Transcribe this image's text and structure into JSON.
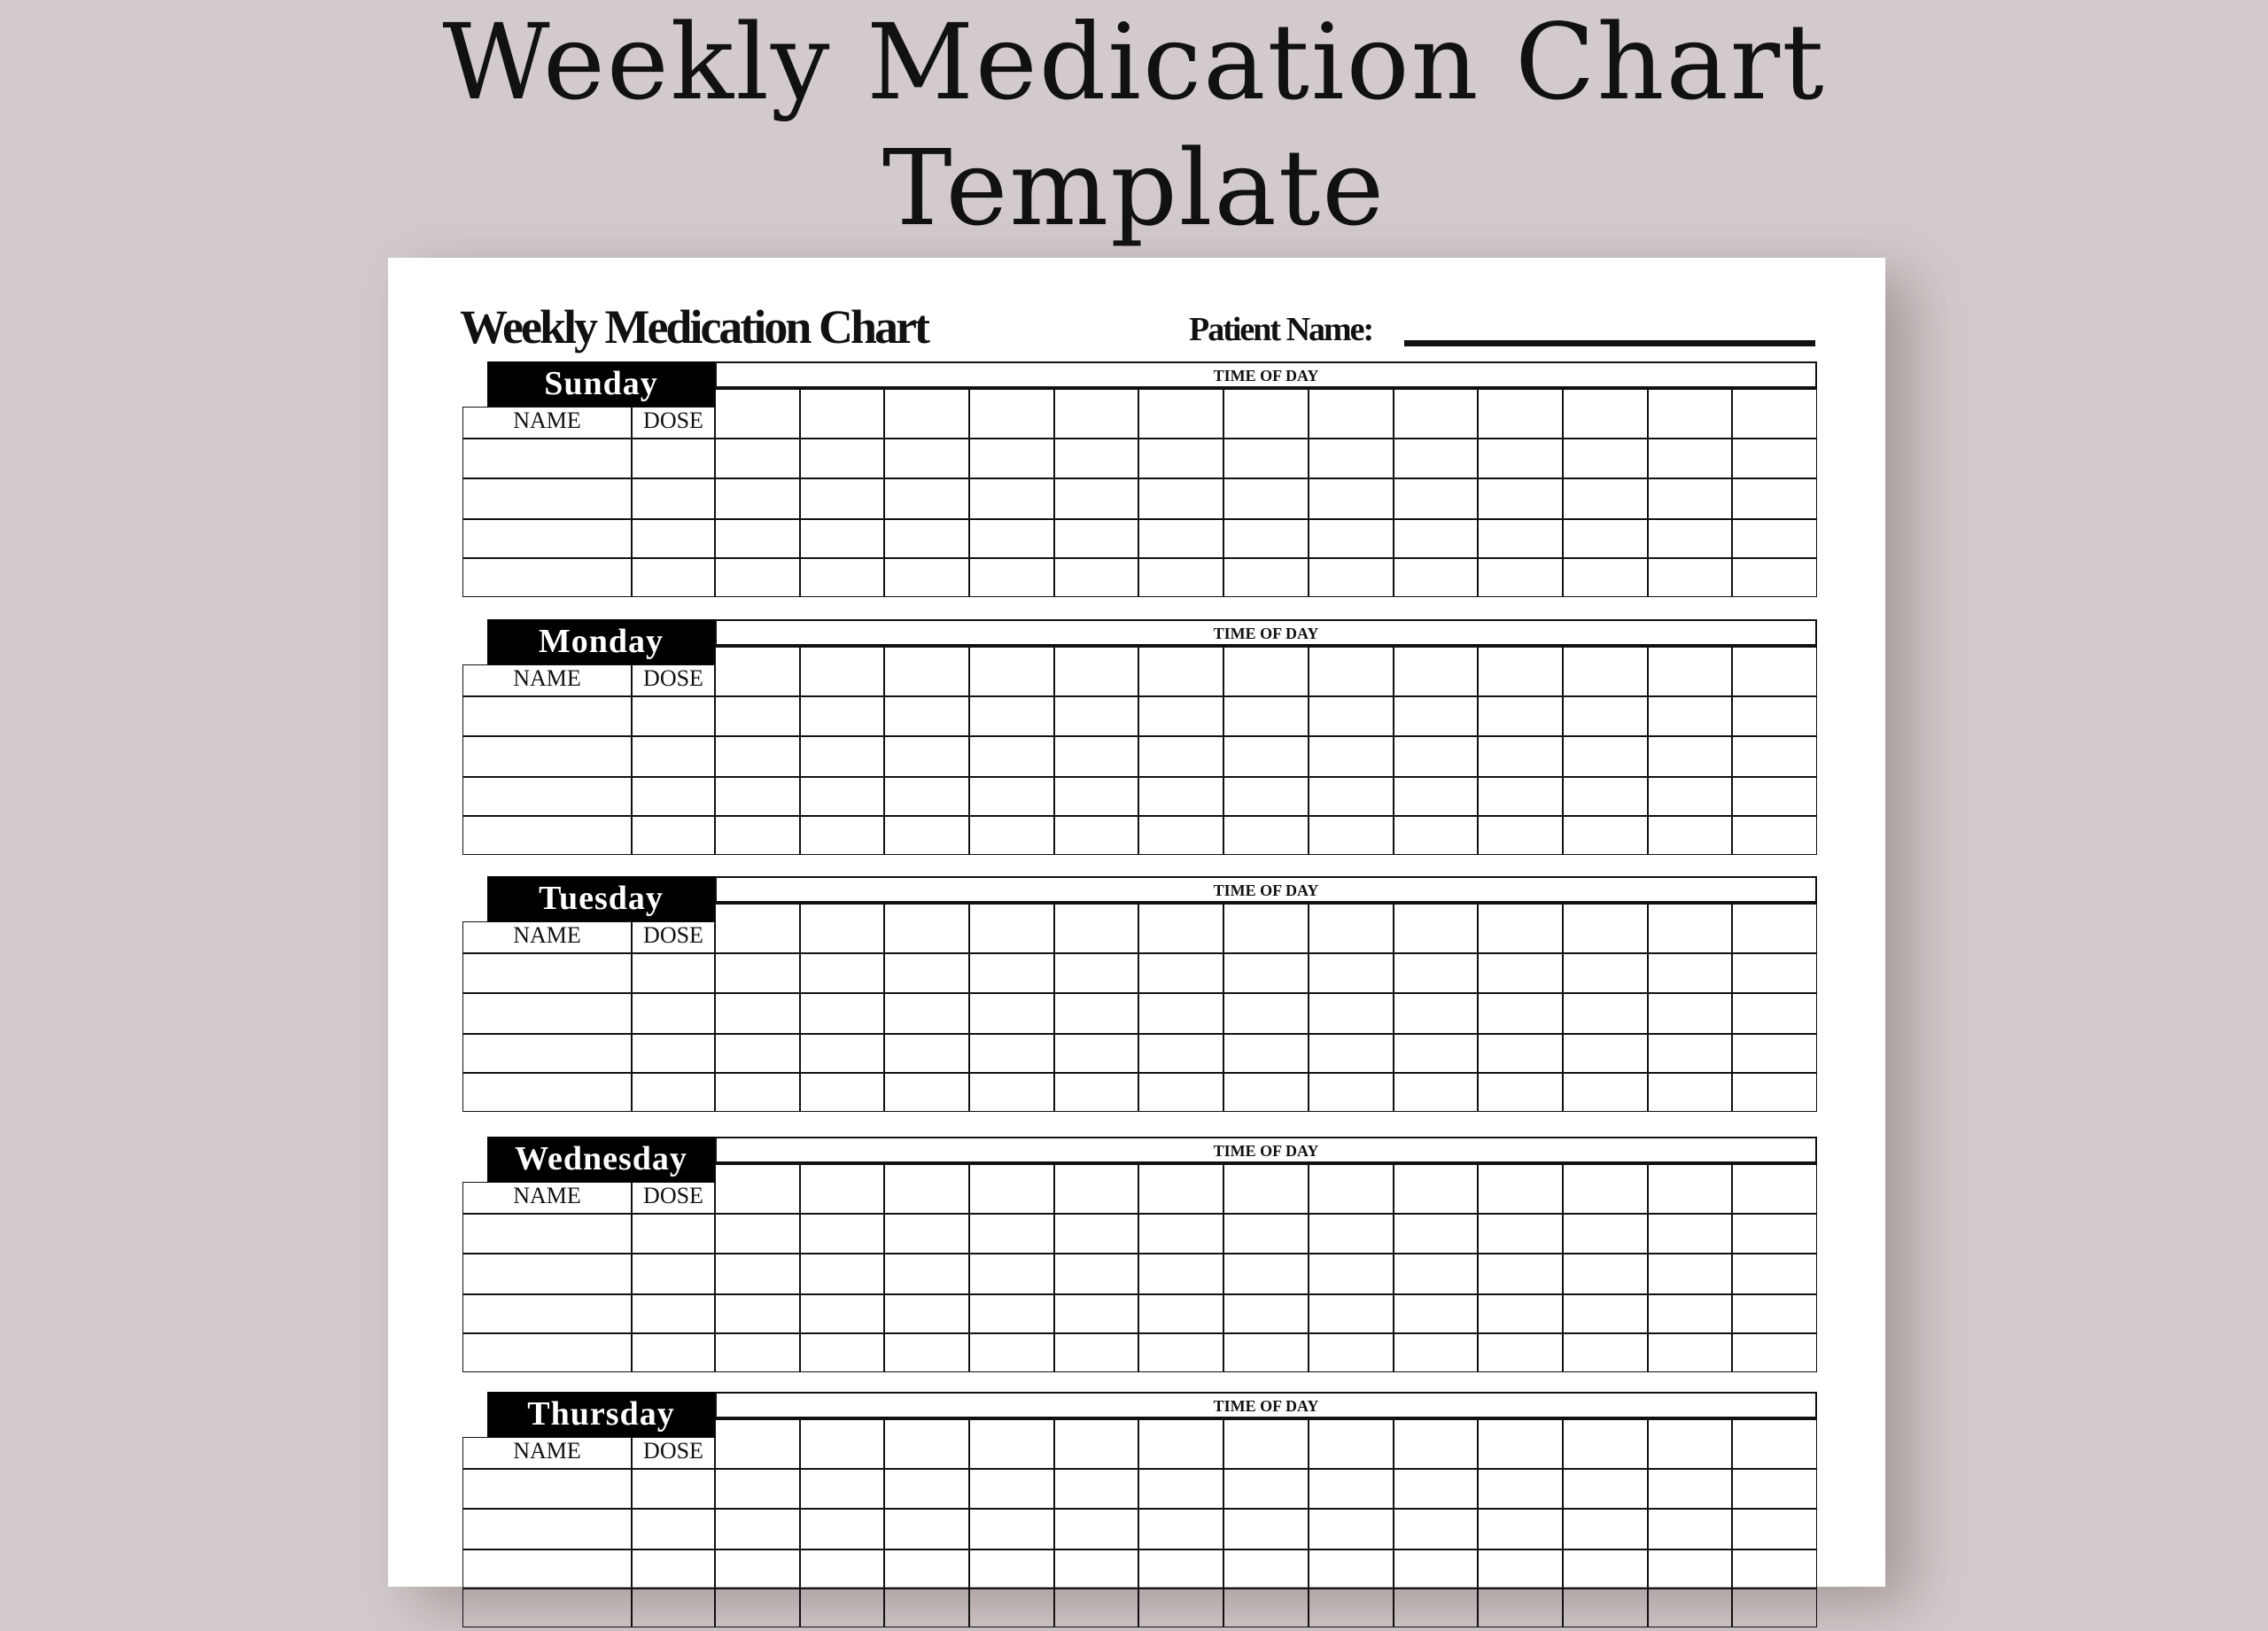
{
  "heading": {
    "line1": "Weekly Medication Chart",
    "line2": "Template"
  },
  "document": {
    "title": "Weekly Medication Chart",
    "patient_name_label": "Patient Name:",
    "patient_name_value": "",
    "time_of_day_label": "TIME  OF DAY",
    "name_header": "NAME",
    "dose_header": "DOSE",
    "time_columns": 13,
    "entry_rows": 4,
    "days": [
      "Sunday",
      "Monday",
      "Tuesday",
      "Wednesday",
      "Thursday"
    ]
  }
}
